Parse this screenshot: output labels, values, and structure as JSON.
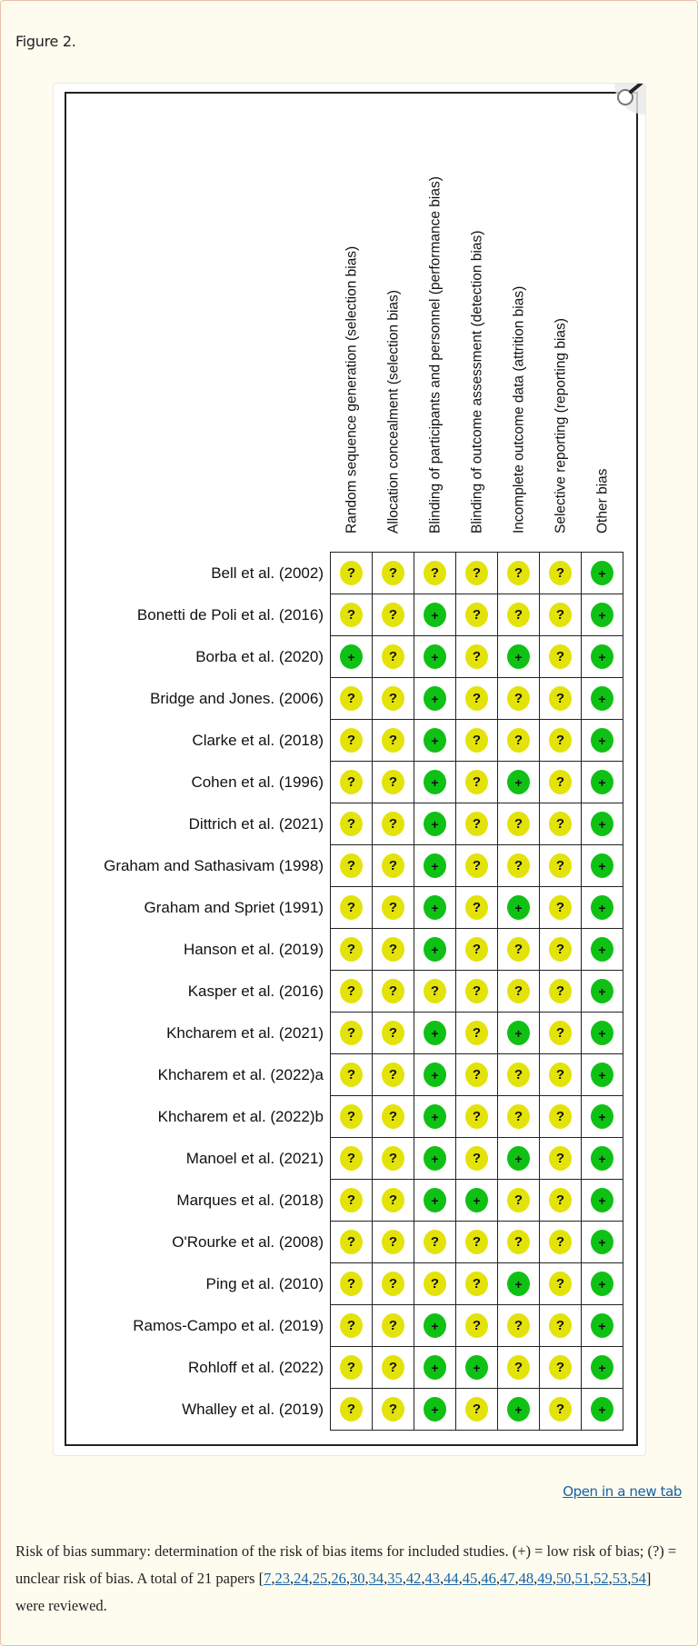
{
  "figure_label": "Figure 2.",
  "open_link": "Open in a new tab",
  "magnifier": {
    "icon": "magnifier-icon"
  },
  "colors": {
    "low_risk": "#0fc114",
    "unclear_risk": "#e3e30a",
    "link": "#1462a8",
    "background": "#fefcef"
  },
  "symbols": {
    "low": "+",
    "unclear": "?"
  },
  "caption": {
    "text_before": "Risk of bias summary: determination of the risk of bias items for included studies. (+) = low risk of bias; (?) = unclear risk of bias. A total of 21 papers ",
    "open_bracket": "[",
    "refs": [
      "7",
      "23",
      "24",
      "25",
      "26",
      "30",
      "34",
      "35",
      "42",
      "43",
      "44",
      "45",
      "46",
      "47",
      "48",
      "49",
      "50",
      "51",
      "52",
      "53",
      "54"
    ],
    "close_text": "] were reviewed."
  },
  "chart_data": {
    "type": "table",
    "title": "Risk of bias summary",
    "columns": [
      "Random sequence generation (selection bias)",
      "Allocation concealment (selection bias)",
      "Blinding of participants and personnel (performance bias)",
      "Blinding of outcome assessment (detection bias)",
      "Incomplete outcome data (attrition bias)",
      "Selective reporting (reporting bias)",
      "Other bias"
    ],
    "legend": {
      "+": "low risk of bias",
      "?": "unclear risk of bias"
    },
    "rows": [
      {
        "study": "Bell et al. (2002)",
        "ratings": [
          "?",
          "?",
          "?",
          "?",
          "?",
          "?",
          "+"
        ]
      },
      {
        "study": "Bonetti de Poli et al. (2016)",
        "ratings": [
          "?",
          "?",
          "+",
          "?",
          "?",
          "?",
          "+"
        ]
      },
      {
        "study": "Borba et al. (2020)",
        "ratings": [
          "+",
          "?",
          "+",
          "?",
          "+",
          "?",
          "+"
        ]
      },
      {
        "study": "Bridge and Jones. (2006)",
        "ratings": [
          "?",
          "?",
          "+",
          "?",
          "?",
          "?",
          "+"
        ]
      },
      {
        "study": "Clarke et al. (2018)",
        "ratings": [
          "?",
          "?",
          "+",
          "?",
          "?",
          "?",
          "+"
        ]
      },
      {
        "study": "Cohen et al. (1996)",
        "ratings": [
          "?",
          "?",
          "+",
          "?",
          "+",
          "?",
          "+"
        ]
      },
      {
        "study": "Dittrich et al. (2021)",
        "ratings": [
          "?",
          "?",
          "+",
          "?",
          "?",
          "?",
          "+"
        ]
      },
      {
        "study": "Graham and Sathasivam (1998)",
        "ratings": [
          "?",
          "?",
          "+",
          "?",
          "?",
          "?",
          "+"
        ]
      },
      {
        "study": "Graham and Spriet (1991)",
        "ratings": [
          "?",
          "?",
          "+",
          "?",
          "+",
          "?",
          "+"
        ]
      },
      {
        "study": "Hanson et al. (2019)",
        "ratings": [
          "?",
          "?",
          "+",
          "?",
          "?",
          "?",
          "+"
        ]
      },
      {
        "study": "Kasper et al. (2016)",
        "ratings": [
          "?",
          "?",
          "?",
          "?",
          "?",
          "?",
          "+"
        ]
      },
      {
        "study": "Khcharem et al. (2021)",
        "ratings": [
          "?",
          "?",
          "+",
          "?",
          "+",
          "?",
          "+"
        ]
      },
      {
        "study": "Khcharem et al. (2022)a",
        "ratings": [
          "?",
          "?",
          "+",
          "?",
          "?",
          "?",
          "+"
        ]
      },
      {
        "study": "Khcharem et al. (2022)b",
        "ratings": [
          "?",
          "?",
          "+",
          "?",
          "?",
          "?",
          "+"
        ]
      },
      {
        "study": "Manoel et al. (2021)",
        "ratings": [
          "?",
          "?",
          "+",
          "?",
          "+",
          "?",
          "+"
        ]
      },
      {
        "study": "Marques et al. (2018)",
        "ratings": [
          "?",
          "?",
          "+",
          "+",
          "?",
          "?",
          "+"
        ]
      },
      {
        "study": "O'Rourke et al. (2008)",
        "ratings": [
          "?",
          "?",
          "?",
          "?",
          "?",
          "?",
          "+"
        ]
      },
      {
        "study": "Ping et al. (2010)",
        "ratings": [
          "?",
          "?",
          "?",
          "?",
          "+",
          "?",
          "+"
        ]
      },
      {
        "study": "Ramos-Campo et al. (2019)",
        "ratings": [
          "?",
          "?",
          "+",
          "?",
          "?",
          "?",
          "+"
        ]
      },
      {
        "study": "Rohloff et al. (2022)",
        "ratings": [
          "?",
          "?",
          "+",
          "+",
          "?",
          "?",
          "+"
        ]
      },
      {
        "study": "Whalley et al. (2019)",
        "ratings": [
          "?",
          "?",
          "+",
          "?",
          "+",
          "?",
          "+"
        ]
      }
    ]
  }
}
